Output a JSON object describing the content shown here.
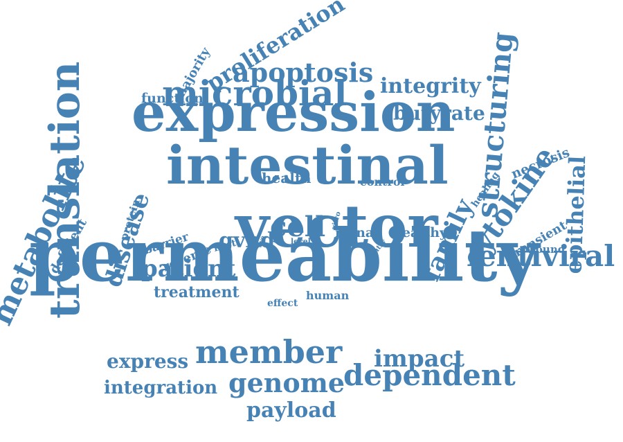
{
  "colors": {
    "word": "#4682b4",
    "background": "#ffffff"
  },
  "words": {
    "permeability": "permeability",
    "expression": "expression",
    "intestinal": "intestinal",
    "vector": "vector",
    "translation": "translation",
    "member": "member",
    "microbial": "microbial",
    "metabolite": "metabolite",
    "lentiviral": "lentiviral",
    "dependent": "dependent",
    "genome": "genome",
    "cytokine": "cytokine",
    "structuring": "structuring",
    "apoptosis": "apoptosis",
    "family": "family",
    "epithelial": "epithelial",
    "proliferation": "proliferation",
    "impact": "impact",
    "patient": "patient",
    "disease": "disease",
    "cell": "cell",
    "payload": "payload",
    "integration": "integration",
    "express": "express",
    "integrity": "integrity",
    "butyrate": "butyrate",
    "gvhd": "gvhd",
    "treatment": "treatment",
    "function": "function",
    "majority": "majority",
    "necrosis": "necrosis",
    "health": "health",
    "control": "control",
    "healthy": "healthy",
    "mrna": "mrna",
    "human": "human",
    "effect": "effect",
    "barrier": "barrier",
    "reverse": "reverse",
    "hsct": "hsct",
    "protein": "protein",
    "deficient": "deficient",
    "transient": "transient",
    "wound": "wound",
    "healing": "healing",
    "vitro": "vitro",
    "entry": "entry",
    "level": "level",
    "line": "line",
    "five": "five"
  }
}
